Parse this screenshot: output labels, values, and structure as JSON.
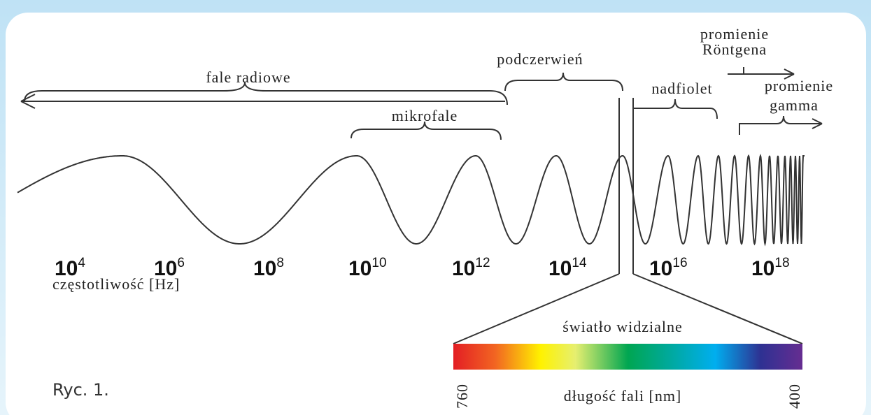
{
  "regions": {
    "radio": "fale radiowe",
    "microwave": "mikrofale",
    "infrared": "podczerwień",
    "ultraviolet": "nadfiolet",
    "xray": [
      "promienie",
      "Röntgena"
    ],
    "gamma": [
      "promienie",
      "gamma"
    ]
  },
  "frequency": {
    "label": "częstotliwość [Hz]",
    "ticks": [
      {
        "base": "10",
        "exp": "4"
      },
      {
        "base": "10",
        "exp": "6"
      },
      {
        "base": "10",
        "exp": "8"
      },
      {
        "base": "10",
        "exp": "10"
      },
      {
        "base": "10",
        "exp": "12"
      },
      {
        "base": "10",
        "exp": "14"
      },
      {
        "base": "10",
        "exp": "16"
      },
      {
        "base": "10",
        "exp": "18"
      }
    ]
  },
  "visible": {
    "label": "światło widzialne",
    "wavelength_label": "długość fali [nm]",
    "start": 760,
    "end": 400
  },
  "caption": "Ryc. 1."
}
